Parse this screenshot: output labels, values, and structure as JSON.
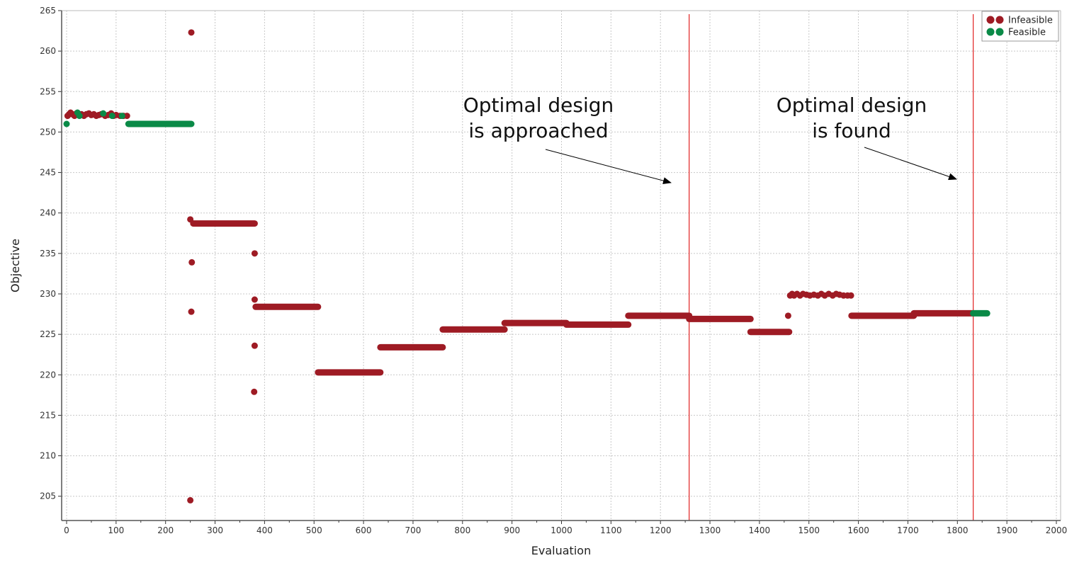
{
  "chart_data": {
    "type": "scatter",
    "title": "",
    "xlabel": "Evaluation",
    "ylabel": "Objective",
    "xlim": [
      0,
      2000
    ],
    "ylim": [
      202,
      265
    ],
    "grid": true,
    "legend_position": "top-right",
    "x_ticks": [
      "0",
      "100",
      "200",
      "300",
      "400",
      "500",
      "600",
      "700",
      "800",
      "900",
      "1000",
      "1100",
      "1200",
      "1300",
      "1400",
      "1500",
      "1600",
      "1700",
      "1800",
      "1900",
      "2000"
    ],
    "y_ticks": [
      "205",
      "210",
      "215",
      "220",
      "225",
      "230",
      "235",
      "240",
      "245",
      "250",
      "255",
      "260",
      "265"
    ],
    "colors": {
      "Infeasible": "#9e1b24",
      "Feasible": "#0a8a47",
      "vline": "#e02020"
    },
    "series": [
      {
        "name": "Infeasible",
        "color": "#9e1b24",
        "points": [
          [
            2,
            252.0
          ],
          [
            5,
            252.2
          ],
          [
            8,
            252.4
          ],
          [
            12,
            252.2
          ],
          [
            16,
            252.0
          ],
          [
            20,
            252.3
          ],
          [
            26,
            252.1
          ],
          [
            30,
            252.2
          ],
          [
            35,
            252.0
          ],
          [
            40,
            252.2
          ],
          [
            45,
            252.3
          ],
          [
            50,
            252.1
          ],
          [
            55,
            252.2
          ],
          [
            60,
            252.0
          ],
          [
            65,
            252.1
          ],
          [
            70,
            252.2
          ],
          [
            78,
            252.0
          ],
          [
            84,
            252.1
          ],
          [
            90,
            252.3
          ],
          [
            95,
            252.0
          ],
          [
            100,
            252.1
          ],
          [
            108,
            252.0
          ],
          [
            115,
            252.0
          ],
          [
            122,
            252.0
          ],
          [
            250,
            239.2
          ],
          [
            252,
            262.3
          ],
          [
            253,
            233.9
          ],
          [
            252,
            227.8
          ],
          [
            250,
            204.5
          ],
          [
            380,
            235.0
          ],
          [
            380,
            229.3
          ],
          [
            380,
            223.6
          ],
          [
            379,
            217.9
          ],
          [
            1458,
            227.3
          ],
          [
            1462,
            229.8
          ],
          [
            1466,
            230.0
          ],
          [
            1470,
            229.8
          ],
          [
            1476,
            230.0
          ],
          [
            1482,
            229.8
          ],
          [
            1488,
            230.0
          ],
          [
            1495,
            229.9
          ],
          [
            1502,
            229.8
          ],
          [
            1510,
            229.9
          ],
          [
            1518,
            229.8
          ],
          [
            1525,
            230.0
          ],
          [
            1532,
            229.8
          ],
          [
            1540,
            230.0
          ],
          [
            1548,
            229.8
          ],
          [
            1555,
            230.0
          ],
          [
            1562,
            229.9
          ],
          [
            1570,
            229.8
          ],
          [
            1578,
            229.8
          ],
          [
            1585,
            229.8
          ]
        ],
        "segments": [
          {
            "x": [
              256,
              380
            ],
            "y": 238.7
          },
          {
            "x": [
              382,
              508
            ],
            "y": 228.4
          },
          {
            "x": [
              508,
              634
            ],
            "y": 220.3
          },
          {
            "x": [
              634,
              760
            ],
            "y": 223.4
          },
          {
            "x": [
              760,
              885
            ],
            "y": 225.6
          },
          {
            "x": [
              885,
              1010
            ],
            "y": 226.4
          },
          {
            "x": [
              1010,
              1135
            ],
            "y": 226.2
          },
          {
            "x": [
              1135,
              1258
            ],
            "y": 227.3
          },
          {
            "x": [
              1258,
              1382
            ],
            "y": 226.9
          },
          {
            "x": [
              1382,
              1460
            ],
            "y": 225.3
          },
          {
            "x": [
              1586,
              1712
            ],
            "y": 227.3
          },
          {
            "x": [
              1712,
              1832
            ],
            "y": 227.6
          }
        ]
      },
      {
        "name": "Feasible",
        "color": "#0a8a47",
        "points": [
          [
            0,
            251.0
          ],
          [
            22,
            252.4
          ],
          [
            26,
            252.0
          ],
          [
            74,
            252.3
          ],
          [
            92,
            252.0
          ],
          [
            112,
            252.0
          ]
        ],
        "segments": [
          {
            "x": [
              125,
              252
            ],
            "y": 251.0
          },
          {
            "x": [
              1832,
              1860
            ],
            "y": 227.6
          }
        ]
      }
    ],
    "vlines": [
      1258,
      1832
    ],
    "annotations": [
      {
        "lines": [
          "Optimal design",
          "is approached"
        ],
        "points_to": [
          1258,
          246.0
        ]
      },
      {
        "lines": [
          "Optimal design",
          "is found"
        ],
        "points_to": [
          1832,
          246.0
        ]
      }
    ]
  }
}
